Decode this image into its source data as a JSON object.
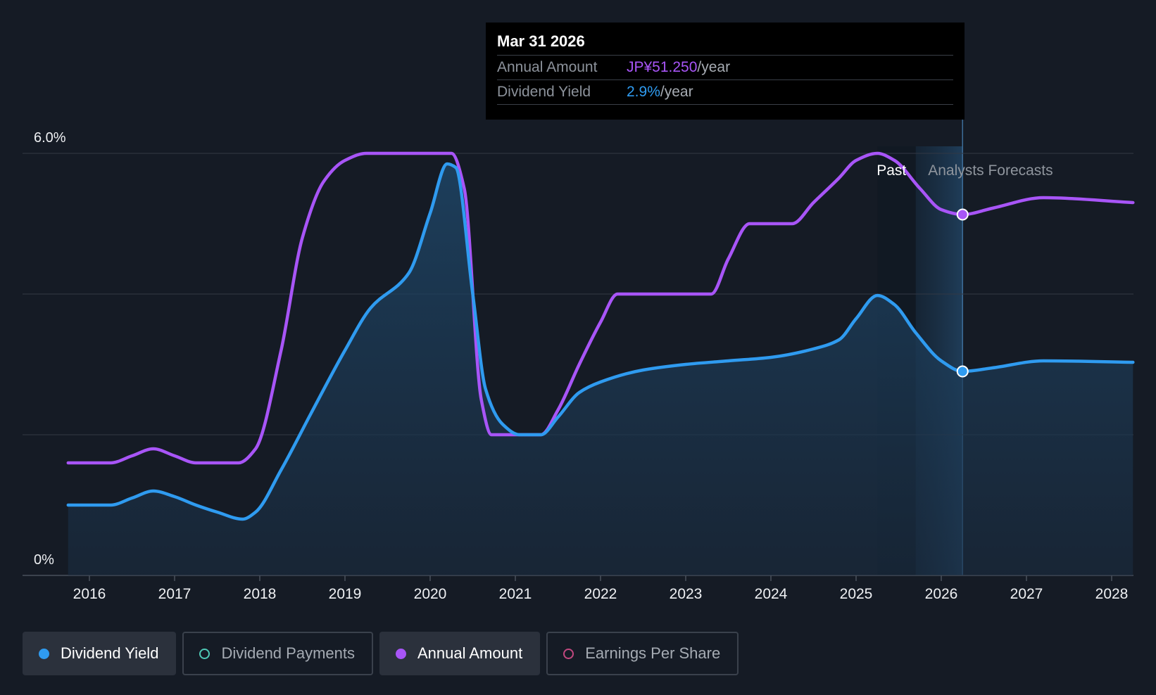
{
  "colors": {
    "background": "#151b25",
    "yield": "#2f9bf0",
    "annual": "#a855f7",
    "payments": "#4fc9b6",
    "eps": "#c2487f",
    "grid": "#323844"
  },
  "tooltip": {
    "date": "Mar 31 2026",
    "rows": [
      {
        "label": "Annual Amount",
        "value": "JP¥51.250",
        "unit": "/year"
      },
      {
        "label": "Dividend Yield",
        "value": "2.9%",
        "unit": "/year"
      }
    ]
  },
  "chart_data": {
    "type": "line",
    "y_axis": {
      "labels": [
        "6.0%",
        "0%"
      ],
      "ylim": [
        0,
        6.0
      ],
      "gridlines": [
        0,
        2.0,
        4.0,
        6.0
      ]
    },
    "x_axis": {
      "ticks": [
        "2016",
        "2017",
        "2018",
        "2019",
        "2020",
        "2021",
        "2022",
        "2023",
        "2024",
        "2025",
        "2026",
        "2027",
        "2028"
      ],
      "xlim": [
        2015.74,
        2028.25
      ]
    },
    "regions": {
      "past_label": "Past",
      "forecast_label": "Analysts Forecasts",
      "past_start": 2025.25,
      "forecast_start": 2025.7,
      "cursor": 2026.25
    },
    "series": [
      {
        "name": "Dividend Yield",
        "values": [
          [
            2015.75,
            1.0
          ],
          [
            2016.25,
            1.0
          ],
          [
            2016.5,
            1.1
          ],
          [
            2016.75,
            1.2
          ],
          [
            2017.0,
            1.12
          ],
          [
            2017.25,
            1.0
          ],
          [
            2017.5,
            0.9
          ],
          [
            2017.8,
            0.8
          ],
          [
            2017.95,
            0.9
          ],
          [
            2018.25,
            1.5
          ],
          [
            2018.6,
            2.3
          ],
          [
            2019.0,
            3.2
          ],
          [
            2019.3,
            3.8
          ],
          [
            2019.75,
            4.3
          ],
          [
            2020.0,
            5.15
          ],
          [
            2020.2,
            5.85
          ],
          [
            2020.3,
            5.8
          ],
          [
            2020.5,
            4.0
          ],
          [
            2020.65,
            2.65
          ],
          [
            2020.85,
            2.15
          ],
          [
            2021.05,
            2.0
          ],
          [
            2021.3,
            2.0
          ],
          [
            2021.5,
            2.25
          ],
          [
            2021.75,
            2.6
          ],
          [
            2022.0,
            2.75
          ],
          [
            2022.5,
            2.92
          ],
          [
            2023.0,
            3.0
          ],
          [
            2023.5,
            3.05
          ],
          [
            2024.0,
            3.1
          ],
          [
            2024.5,
            3.22
          ],
          [
            2024.8,
            3.35
          ],
          [
            2025.0,
            3.65
          ],
          [
            2025.25,
            3.98
          ],
          [
            2025.45,
            3.85
          ],
          [
            2025.7,
            3.45
          ],
          [
            2026.0,
            3.05
          ],
          [
            2026.25,
            2.9
          ],
          [
            2026.6,
            2.95
          ],
          [
            2027.2,
            3.05
          ],
          [
            2028.25,
            3.03
          ]
        ]
      },
      {
        "name": "Annual Amount",
        "values": [
          [
            2015.75,
            1.6
          ],
          [
            2016.25,
            1.6
          ],
          [
            2016.5,
            1.7
          ],
          [
            2016.75,
            1.8
          ],
          [
            2017.0,
            1.7
          ],
          [
            2017.25,
            1.6
          ],
          [
            2017.75,
            1.6
          ],
          [
            2017.95,
            1.8
          ],
          [
            2018.25,
            3.2
          ],
          [
            2018.5,
            4.8
          ],
          [
            2018.75,
            5.6
          ],
          [
            2019.0,
            5.9
          ],
          [
            2019.25,
            6.0
          ],
          [
            2020.25,
            6.0
          ],
          [
            2020.4,
            5.5
          ],
          [
            2020.6,
            2.5
          ],
          [
            2020.72,
            2.0
          ],
          [
            2021.3,
            2.0
          ],
          [
            2021.5,
            2.35
          ],
          [
            2021.75,
            3.0
          ],
          [
            2022.0,
            3.6
          ],
          [
            2022.2,
            4.0
          ],
          [
            2023.3,
            4.0
          ],
          [
            2023.5,
            4.5
          ],
          [
            2023.75,
            5.0
          ],
          [
            2024.25,
            5.0
          ],
          [
            2024.5,
            5.3
          ],
          [
            2024.8,
            5.65
          ],
          [
            2025.0,
            5.9
          ],
          [
            2025.25,
            6.0
          ],
          [
            2025.45,
            5.9
          ],
          [
            2025.75,
            5.5
          ],
          [
            2026.0,
            5.2
          ],
          [
            2026.25,
            5.13
          ],
          [
            2026.6,
            5.22
          ],
          [
            2027.2,
            5.37
          ],
          [
            2028.25,
            5.3
          ]
        ]
      }
    ]
  },
  "legend": [
    {
      "label": "Dividend Yield",
      "active": true,
      "color": "#2f9bf0"
    },
    {
      "label": "Dividend Payments",
      "active": false,
      "color": "#4fc9b6"
    },
    {
      "label": "Annual Amount",
      "active": true,
      "color": "#a855f7"
    },
    {
      "label": "Earnings Per Share",
      "active": false,
      "color": "#c2487f"
    }
  ]
}
